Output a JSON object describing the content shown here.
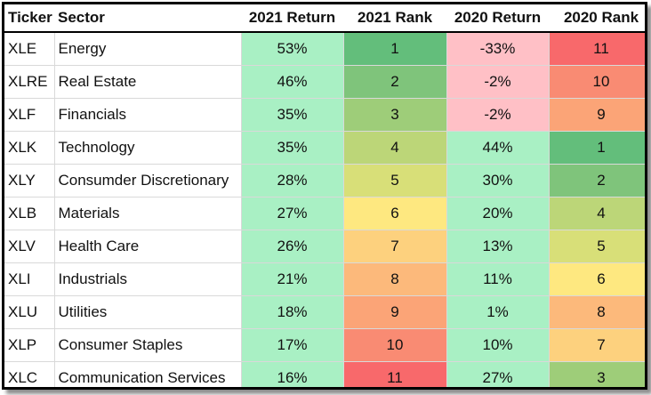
{
  "headers": {
    "ticker": "Ticker",
    "sector": "Sector",
    "return_2021": "2021 Return",
    "rank_2021": "2021 Rank",
    "return_2020": "2020 Return",
    "rank_2020": "2020 Rank"
  },
  "rows": [
    {
      "ticker": "XLE",
      "sector": "Energy",
      "return_2021": "53%",
      "rank_2021": "1",
      "return_2020": "-33%",
      "rank_2020": "11"
    },
    {
      "ticker": "XLRE",
      "sector": "Real Estate",
      "return_2021": "46%",
      "rank_2021": "2",
      "return_2020": "-2%",
      "rank_2020": "10"
    },
    {
      "ticker": "XLF",
      "sector": "Financials",
      "return_2021": "35%",
      "rank_2021": "3",
      "return_2020": "-2%",
      "rank_2020": "9"
    },
    {
      "ticker": "XLK",
      "sector": "Technology",
      "return_2021": "35%",
      "rank_2021": "4",
      "return_2020": "44%",
      "rank_2020": "1"
    },
    {
      "ticker": "XLY",
      "sector": "Consumder Discretionary",
      "return_2021": "28%",
      "rank_2021": "5",
      "return_2020": "30%",
      "rank_2020": "2"
    },
    {
      "ticker": "XLB",
      "sector": "Materials",
      "return_2021": "27%",
      "rank_2021": "6",
      "return_2020": "20%",
      "rank_2020": "4"
    },
    {
      "ticker": "XLV",
      "sector": "Health Care",
      "return_2021": "26%",
      "rank_2021": "7",
      "return_2020": "13%",
      "rank_2020": "5"
    },
    {
      "ticker": "XLI",
      "sector": "Industrials",
      "return_2021": "21%",
      "rank_2021": "8",
      "return_2020": "11%",
      "rank_2020": "6"
    },
    {
      "ticker": "XLU",
      "sector": "Utilities",
      "return_2021": "18%",
      "rank_2021": "9",
      "return_2020": "1%",
      "rank_2020": "8"
    },
    {
      "ticker": "XLP",
      "sector": "Consumer Staples",
      "return_2021": "17%",
      "rank_2021": "10",
      "return_2020": "10%",
      "rank_2020": "7"
    },
    {
      "ticker": "XLC",
      "sector": "Communication Services",
      "return_2021": "16%",
      "rank_2021": "11",
      "return_2020": "27%",
      "rank_2020": "3"
    }
  ],
  "colors": {
    "positive_return": "#a9f0c4",
    "negative_return": "#ffc0c6",
    "rank_scale": [
      "#63be7b",
      "#7fc47b",
      "#9ecd79",
      "#bcd678",
      "#d8df78",
      "#fee880",
      "#fdd17e",
      "#fcb97b",
      "#fba477",
      "#f98b73",
      "#f8696b"
    ]
  }
}
